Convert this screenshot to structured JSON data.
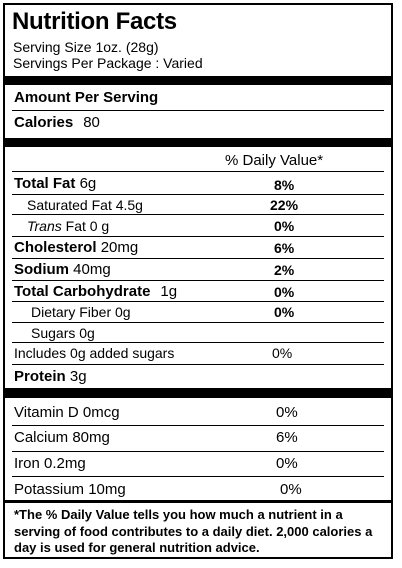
{
  "title": "Nutrition Facts",
  "serving_size": "Serving Size 1oz.  (28g)",
  "servings_per_package": "Servings Per Package : Varied",
  "amount_per_serving": "Amount Per Serving",
  "calories": {
    "label": "Calories",
    "value": "80"
  },
  "daily_value_header": "% Daily Value*",
  "nutrients": {
    "total_fat": {
      "label": "Total Fat",
      "amount": "6g",
      "dv": "8%"
    },
    "saturated_fat": {
      "label": "Saturated Fat 4.5g",
      "dv": "22%"
    },
    "trans_fat": {
      "label_italic": "Trans",
      "label_rest": " Fat 0 g",
      "dv": "0%"
    },
    "cholesterol": {
      "label": "Cholesterol",
      "amount": "20mg",
      "dv": "6%"
    },
    "sodium": {
      "label": "Sodium",
      "amount": "40mg",
      "dv": "2%"
    },
    "total_carbohydrate": {
      "label": "Total Carbohydrate",
      "amount": "1g",
      "dv": "0%"
    },
    "dietary_fiber": {
      "label": "Dietary Fiber 0g",
      "dv": "0%"
    },
    "sugars": {
      "label": "Sugars 0g"
    },
    "added_sugars": {
      "label": "Includes 0g added sugars",
      "dv": "0%"
    },
    "protein": {
      "label": "Protein",
      "amount": "3g"
    }
  },
  "vitamins": [
    {
      "label": "Vitamin D 0mcg",
      "dv": "0%"
    },
    {
      "label": "Calcium 80mg",
      "dv": "6%"
    },
    {
      "label": "Iron 0.2mg",
      "dv": "0%"
    },
    {
      "label": "Potassium 10mg",
      "dv": "0%"
    }
  ],
  "footnote": "*The % Daily Value tells you how much a nutrient in a serving of food contributes to a daily diet. 2,000 calories a day is used for general nutrition advice."
}
